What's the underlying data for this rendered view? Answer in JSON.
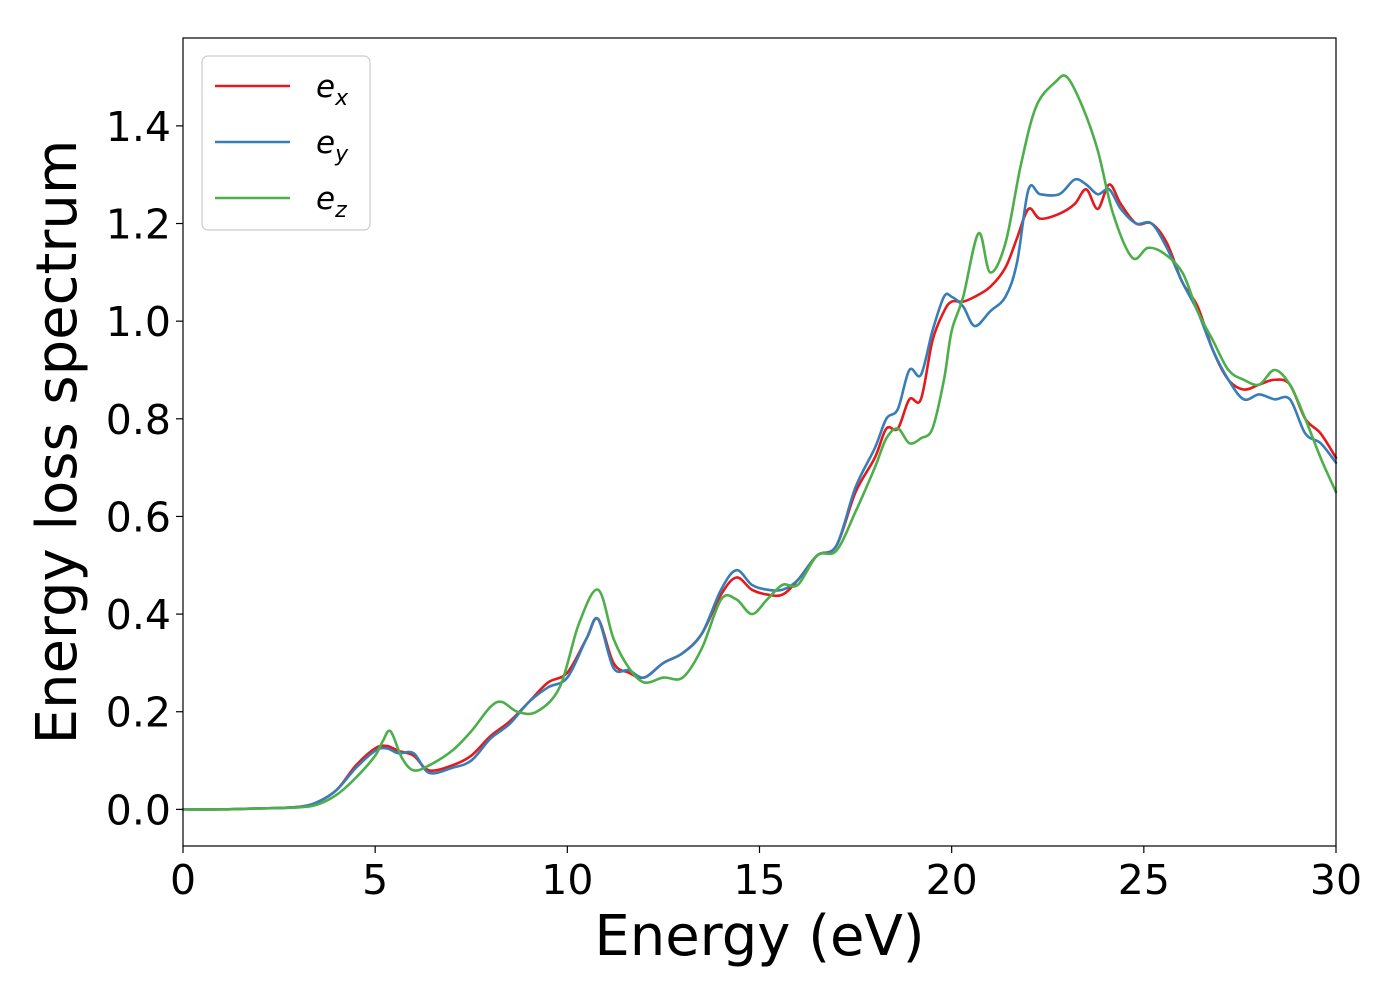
{
  "chart_data": {
    "type": "line",
    "xlabel": "Energy (eV)",
    "ylabel": "Energy loss spectrum",
    "xlim": [
      0,
      30
    ],
    "ylim": [
      -0.075,
      1.58
    ],
    "xticks": [
      0,
      5,
      10,
      15,
      20,
      25,
      30
    ],
    "xtick_labels": [
      "0",
      "5",
      "10",
      "15",
      "20",
      "25",
      "30"
    ],
    "yticks": [
      0.0,
      0.2,
      0.4,
      0.6,
      0.8,
      1.0,
      1.2,
      1.4
    ],
    "ytick_labels": [
      "0.0",
      "0.2",
      "0.4",
      "0.6",
      "0.8",
      "1.0",
      "1.2",
      "1.4"
    ],
    "grid": false,
    "legend_position": "top-left",
    "series": [
      {
        "name": "e_x",
        "label_base": "e",
        "label_sub": "x",
        "color": "#e41a1c",
        "x": [
          0,
          1,
          2,
          3,
          3.5,
          4,
          4.5,
          5,
          5.3,
          5.6,
          6,
          6.4,
          7,
          7.5,
          8,
          8.5,
          9,
          9.5,
          10,
          10.5,
          10.8,
          11.2,
          11.6,
          12,
          12.5,
          13,
          13.5,
          14,
          14.4,
          14.8,
          15.2,
          15.6,
          16,
          16.5,
          17,
          17.5,
          18,
          18.3,
          18.6,
          18.9,
          19.2,
          19.5,
          19.8,
          20,
          20.3,
          20.6,
          21,
          21.4,
          21.7,
          22,
          22.3,
          22.8,
          23.2,
          23.5,
          23.8,
          24.1,
          24.4,
          24.8,
          25.2,
          25.6,
          26,
          26.4,
          26.8,
          27.2,
          27.6,
          28,
          28.4,
          28.8,
          29.2,
          29.6,
          30
        ],
        "y": [
          0.0,
          0.0,
          0.002,
          0.005,
          0.015,
          0.04,
          0.09,
          0.125,
          0.13,
          0.12,
          0.11,
          0.08,
          0.09,
          0.11,
          0.15,
          0.18,
          0.22,
          0.26,
          0.28,
          0.35,
          0.39,
          0.3,
          0.28,
          0.27,
          0.3,
          0.32,
          0.36,
          0.44,
          0.475,
          0.45,
          0.44,
          0.44,
          0.47,
          0.52,
          0.54,
          0.65,
          0.72,
          0.78,
          0.78,
          0.84,
          0.84,
          0.96,
          1.02,
          1.04,
          1.04,
          1.05,
          1.07,
          1.11,
          1.17,
          1.23,
          1.21,
          1.22,
          1.24,
          1.27,
          1.23,
          1.28,
          1.24,
          1.2,
          1.2,
          1.16,
          1.08,
          1.03,
          0.94,
          0.88,
          0.86,
          0.87,
          0.88,
          0.87,
          0.8,
          0.77,
          0.72
        ]
      },
      {
        "name": "e_y",
        "label_base": "e",
        "label_sub": "y",
        "color": "#377eb8",
        "x": [
          0,
          1,
          2,
          3,
          3.5,
          4,
          4.5,
          5,
          5.3,
          5.6,
          6,
          6.4,
          7,
          7.5,
          8,
          8.5,
          9,
          9.5,
          10,
          10.5,
          10.8,
          11.2,
          11.6,
          12,
          12.5,
          13,
          13.5,
          14,
          14.4,
          14.8,
          15.2,
          15.6,
          16,
          16.5,
          17,
          17.5,
          18,
          18.3,
          18.6,
          18.9,
          19.2,
          19.5,
          19.8,
          20,
          20.3,
          20.6,
          21,
          21.4,
          21.7,
          22,
          22.3,
          22.8,
          23.2,
          23.5,
          23.8,
          24.1,
          24.4,
          24.8,
          25.2,
          25.6,
          26,
          26.4,
          26.8,
          27.2,
          27.6,
          28,
          28.4,
          28.8,
          29.2,
          29.6,
          30
        ],
        "y": [
          0.0,
          0.0,
          0.002,
          0.005,
          0.015,
          0.04,
          0.085,
          0.12,
          0.125,
          0.115,
          0.115,
          0.075,
          0.085,
          0.1,
          0.145,
          0.175,
          0.22,
          0.25,
          0.27,
          0.35,
          0.39,
          0.29,
          0.285,
          0.27,
          0.3,
          0.32,
          0.36,
          0.45,
          0.49,
          0.46,
          0.45,
          0.45,
          0.47,
          0.52,
          0.54,
          0.66,
          0.74,
          0.8,
          0.82,
          0.9,
          0.89,
          0.98,
          1.05,
          1.05,
          1.03,
          0.99,
          1.02,
          1.05,
          1.12,
          1.27,
          1.26,
          1.26,
          1.29,
          1.28,
          1.26,
          1.27,
          1.23,
          1.2,
          1.2,
          1.15,
          1.08,
          1.02,
          0.94,
          0.88,
          0.84,
          0.85,
          0.84,
          0.84,
          0.77,
          0.75,
          0.71
        ]
      },
      {
        "name": "e_z",
        "label_base": "e",
        "label_sub": "z",
        "color": "#4daf4a",
        "x": [
          0,
          1,
          2,
          3,
          3.5,
          4,
          4.5,
          5,
          5.2,
          5.4,
          5.7,
          6,
          6.4,
          7,
          7.5,
          8,
          8.3,
          8.7,
          9.2,
          9.8,
          10.3,
          10.8,
          11.2,
          11.6,
          12,
          12.5,
          13,
          13.5,
          14,
          14.4,
          14.8,
          15.2,
          15.6,
          16,
          16.5,
          17,
          17.5,
          18,
          18.3,
          18.6,
          18.9,
          19.2,
          19.5,
          19.8,
          20,
          20.3,
          20.7,
          21,
          21.4,
          21.8,
          22.2,
          22.7,
          23,
          23.4,
          23.8,
          24.2,
          24.7,
          25.1,
          25.5,
          26,
          26.4,
          26.8,
          27.2,
          27.6,
          28,
          28.4,
          28.8,
          29.2,
          29.6,
          30
        ],
        "y": [
          0.0,
          0.0,
          0.002,
          0.004,
          0.01,
          0.03,
          0.065,
          0.11,
          0.14,
          0.16,
          0.105,
          0.08,
          0.09,
          0.12,
          0.16,
          0.21,
          0.22,
          0.2,
          0.2,
          0.25,
          0.38,
          0.45,
          0.35,
          0.29,
          0.26,
          0.27,
          0.27,
          0.33,
          0.43,
          0.43,
          0.4,
          0.43,
          0.46,
          0.46,
          0.52,
          0.53,
          0.61,
          0.7,
          0.76,
          0.78,
          0.75,
          0.76,
          0.78,
          0.88,
          0.98,
          1.05,
          1.18,
          1.1,
          1.16,
          1.32,
          1.44,
          1.49,
          1.5,
          1.44,
          1.35,
          1.22,
          1.13,
          1.15,
          1.14,
          1.1,
          1.02,
          0.96,
          0.9,
          0.88,
          0.87,
          0.9,
          0.87,
          0.8,
          0.72,
          0.65
        ]
      }
    ]
  }
}
